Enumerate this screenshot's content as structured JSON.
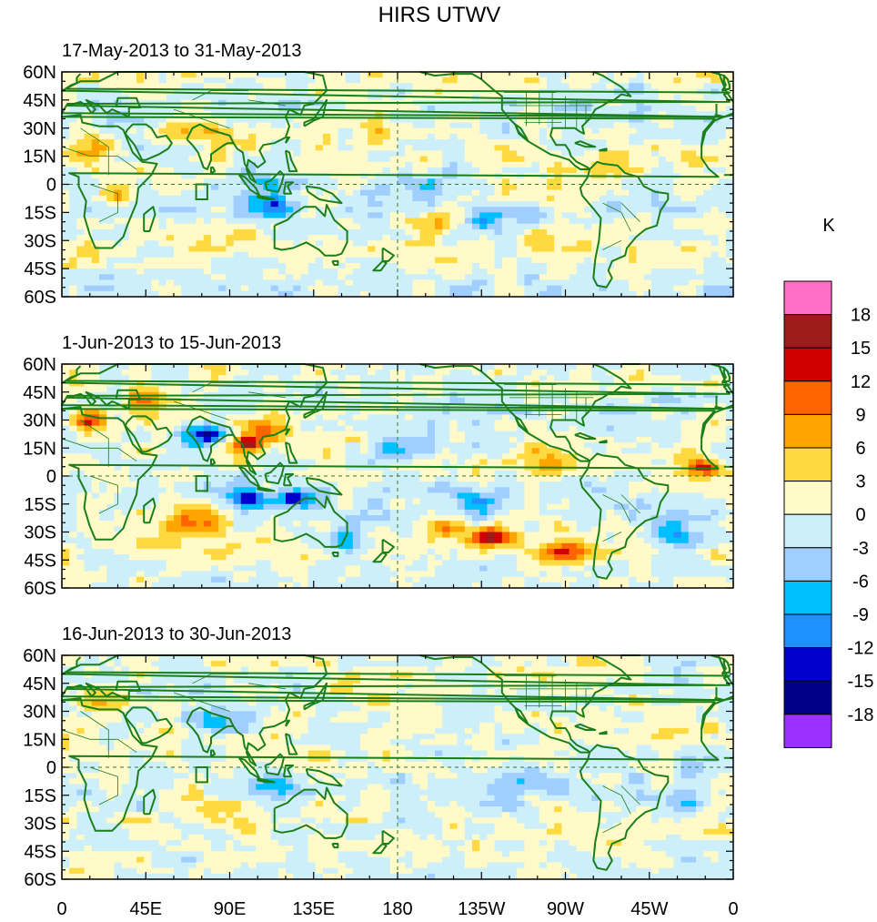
{
  "figure": {
    "title": "HIRS UTWV",
    "colorbar_unit": "K",
    "x_tick_labels": [
      "0",
      "45E",
      "90E",
      "135E",
      "180",
      "135W",
      "90W",
      "45W",
      "0"
    ],
    "y_tick_labels": [
      "60N",
      "45N",
      "30N",
      "15N",
      "0",
      "15S",
      "30S",
      "45S",
      "60S"
    ],
    "colorbar_labels": [
      "18",
      "15",
      "12",
      "9",
      "6",
      "3",
      "0",
      "-3",
      "-6",
      "-9",
      "-12",
      "-15",
      "-18"
    ],
    "colorbar_colors": [
      "#ff6ec7",
      "#9e1b1b",
      "#d10000",
      "#ff6400",
      "#ffa500",
      "#ffd940",
      "#fffac8",
      "#cdeffa",
      "#a0ceff",
      "#00bfff",
      "#1e90ff",
      "#0000cd",
      "#00008b",
      "#9b30ff"
    ],
    "coast_color": "#1a7f1a"
  },
  "chart_data": {
    "type": "heatmap",
    "title": "HIRS UTWV",
    "colorbar": {
      "label": "K",
      "levels": [
        18,
        15,
        12,
        9,
        6,
        3,
        0,
        -3,
        -6,
        -9,
        -12,
        -15,
        -18
      ]
    },
    "x_axis": {
      "range_deg_east": [
        0,
        360
      ],
      "ticks": [
        "0",
        "45E",
        "90E",
        "135E",
        "180",
        "135W",
        "90W",
        "45W",
        "0"
      ]
    },
    "y_axis": {
      "range_deg": [
        -60,
        60
      ],
      "ticks": [
        "60N",
        "45N",
        "30N",
        "15N",
        "0",
        "15S",
        "30S",
        "45S",
        "60S"
      ]
    },
    "panels": [
      {
        "period": "17-May-2013 to 31-May-2013",
        "anomalies": [
          {
            "lon": 115,
            "lat": -12,
            "value": -10,
            "spread": 1.0
          },
          {
            "lon": 205,
            "lat": -20,
            "value": 7,
            "spread": 1.0
          },
          {
            "lon": 230,
            "lat": -18,
            "value": -8,
            "spread": 1.2
          },
          {
            "lon": 30,
            "lat": -5,
            "value": 6,
            "spread": 1.2
          },
          {
            "lon": 15,
            "lat": 20,
            "value": 7,
            "spread": 1.0
          },
          {
            "lon": 70,
            "lat": 30,
            "value": 6,
            "spread": 1.2
          },
          {
            "lon": 105,
            "lat": 28,
            "value": 5,
            "spread": 1.2
          },
          {
            "lon": 110,
            "lat": 5,
            "value": -6,
            "spread": 1.2
          },
          {
            "lon": 175,
            "lat": 30,
            "value": 4,
            "spread": 1.5
          },
          {
            "lon": 260,
            "lat": -30,
            "value": 5,
            "spread": 1.2
          },
          {
            "lon": 200,
            "lat": 0,
            "value": -5,
            "spread": 1.5
          },
          {
            "lon": 80,
            "lat": -28,
            "value": 4,
            "spread": 1.5
          },
          {
            "lon": 300,
            "lat": 15,
            "value": 4,
            "spread": 1.2
          }
        ]
      },
      {
        "period": "1-Jun-2013 to 15-Jun-2013",
        "anomalies": [
          {
            "lon": 75,
            "lat": 22,
            "value": -15,
            "spread": 1.0
          },
          {
            "lon": 100,
            "lat": 17,
            "value": 16,
            "spread": 0.8
          },
          {
            "lon": 125,
            "lat": -12,
            "value": -15,
            "spread": 0.8
          },
          {
            "lon": 100,
            "lat": -12,
            "value": -14,
            "spread": 0.8
          },
          {
            "lon": 205,
            "lat": -28,
            "value": 12,
            "spread": 0.8
          },
          {
            "lon": 230,
            "lat": -32,
            "value": 15,
            "spread": 0.9
          },
          {
            "lon": 70,
            "lat": -22,
            "value": 10,
            "spread": 1.3
          },
          {
            "lon": 110,
            "lat": 25,
            "value": 10,
            "spread": 1.1
          },
          {
            "lon": 15,
            "lat": 30,
            "value": 12,
            "spread": 0.9
          },
          {
            "lon": 45,
            "lat": 40,
            "value": 10,
            "spread": 1.1
          },
          {
            "lon": 345,
            "lat": 5,
            "value": 12,
            "spread": 0.8
          },
          {
            "lon": 270,
            "lat": -40,
            "value": 11,
            "spread": 1.0
          },
          {
            "lon": 330,
            "lat": -30,
            "value": -10,
            "spread": 1.1
          },
          {
            "lon": 180,
            "lat": 15,
            "value": -8,
            "spread": 1.2
          },
          {
            "lon": 220,
            "lat": -15,
            "value": -8,
            "spread": 1.2
          },
          {
            "lon": 260,
            "lat": 5,
            "value": 7,
            "spread": 1.2
          },
          {
            "lon": 150,
            "lat": -35,
            "value": -7,
            "spread": 1.2
          },
          {
            "lon": 290,
            "lat": 25,
            "value": -6,
            "spread": 1.2
          }
        ]
      },
      {
        "period": "16-Jun-2013 to 30-Jun-2013",
        "anomalies": [
          {
            "lon": 115,
            "lat": -10,
            "value": -9,
            "spread": 1.0
          },
          {
            "lon": 70,
            "lat": -20,
            "value": 5,
            "spread": 1.4
          },
          {
            "lon": 25,
            "lat": 35,
            "value": 6,
            "spread": 1.2
          },
          {
            "lon": 80,
            "lat": 25,
            "value": -6,
            "spread": 1.0
          },
          {
            "lon": 330,
            "lat": -20,
            "value": -5,
            "spread": 1.2
          },
          {
            "lon": 300,
            "lat": 35,
            "value": 4,
            "spread": 1.2
          },
          {
            "lon": 200,
            "lat": 10,
            "value": -4,
            "spread": 1.5
          },
          {
            "lon": 240,
            "lat": -10,
            "value": -5,
            "spread": 1.3
          },
          {
            "lon": 170,
            "lat": 40,
            "value": 4,
            "spread": 1.5
          }
        ]
      }
    ]
  }
}
